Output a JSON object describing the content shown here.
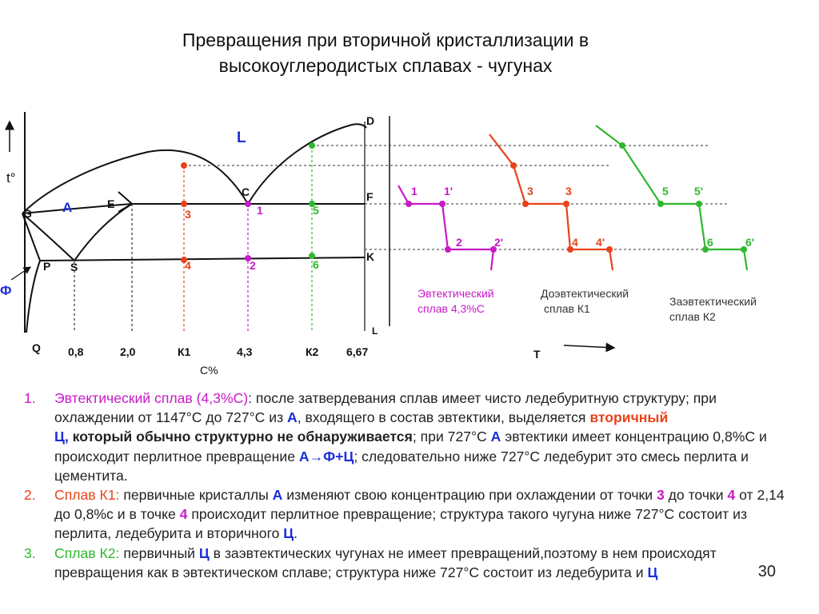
{
  "slide": {
    "title_line1": "Превращения при вторичной кристаллизации в",
    "title_line2": "высокоуглеродистых сплавах - чугунах",
    "page_number": "30"
  },
  "phase_diagram": {
    "axis_y_label": "t°",
    "axis_x_label": "C%",
    "region_L": "L",
    "region_A": "A",
    "region_F": "Ф",
    "points": {
      "G": "G",
      "E": "E",
      "C": "C",
      "D": "D",
      "F": "F",
      "K": "K",
      "P": "P",
      "S": "S",
      "Q": "Q",
      "L": "L"
    },
    "x_ticks": [
      "0,8",
      "2,0",
      "К1",
      "4,3",
      "К2",
      "6,67"
    ],
    "alloy_marks": {
      "k1_upper": "3",
      "k1_lower": "4",
      "eut_upper": "1",
      "eut_lower": "2",
      "k2_upper": "5",
      "k2_lower": "6"
    }
  },
  "cooling_curves": {
    "time_label": "T",
    "eutectic": {
      "labels": [
        "1",
        "1'",
        "2",
        "2'"
      ],
      "caption_line1": "Эвтектический",
      "caption_line2": "сплав 4,3%С"
    },
    "hypoeutectic": {
      "labels": [
        "3",
        "3",
        "4",
        "4'"
      ],
      "caption_line1": "Доэвтектический",
      "caption_line2": "сплав К1"
    },
    "hypereutectic": {
      "labels": [
        "5",
        "5'",
        "6",
        "6'"
      ],
      "caption_line1": "Заэвтектический",
      "caption_line2": "сплав К2"
    }
  },
  "notes": {
    "item1": {
      "num": "1.",
      "t1": "Эвтектический сплав (4,3%С)",
      "t2": ": после затвердевания сплав имеет чисто ледебуритную структуру; при охлаждении  от 1147°С до 727°С из ",
      "t3": "А",
      "t4": ", входящего в состав эвтектики, выделяется ",
      "t5": "вторичный",
      "t6": "Ц,",
      "t7": " который обычно структурно не обнаруживается",
      "t8": "; при 727°С ",
      "t9": "А",
      "t10": " эвтектики имеет концентрацию  0,8%С и происходит  перлитное превращение  ",
      "t11": "А→Ф+Ц",
      "t12": "; следовательно ниже 727°С ледебурит это смесь перлита  и  цементита."
    },
    "item2": {
      "num": "2.",
      "t1": "Сплав К1:",
      "t2": " первичные  кристаллы ",
      "t3": "А",
      "t4": " изменяют свою концентрацию  при охлаждении  от точки ",
      "t5": "3",
      "t6": " до точки ",
      "t7": "4",
      "t8": " от 2,14 до 0,8%с и в точке ",
      "t9": "4",
      "t10": " происходит перлитное  превращение;  структура такого чугуна ниже 727°С состоит из перлита, ледебурита и вторичного ",
      "t11": "Ц",
      "t12": "."
    },
    "item3": {
      "num": "3.",
      "t1": "Сплав К2:",
      "t2": " первичный  ",
      "t3": "Ц",
      "t4": " в заэвтектических  чугунах не имеет превращений,поэтому  в нем  происходят превращения  как в эвтектическом сплаве; структура ниже 727°С состоит из ледебурита и ",
      "t5": "Ц"
    }
  },
  "colors": {
    "eutectic": "#c819c8",
    "hypoeutectic": "#e8421a",
    "hypereutectic": "#2eb82e",
    "phase_label": "#1c2ed6",
    "line": "#111111"
  }
}
